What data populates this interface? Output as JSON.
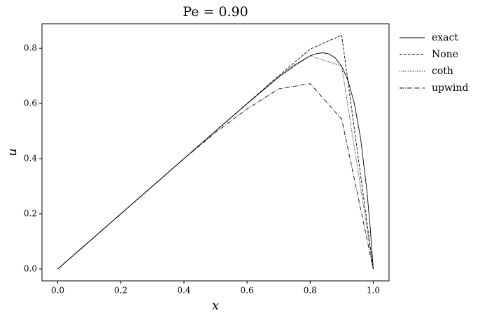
{
  "chart_data": {
    "type": "line",
    "title": "Pe = 0.90",
    "x_label": "x",
    "y_label": "u",
    "xlim": [
      -0.05,
      1.05
    ],
    "ylim": [
      -0.043,
      0.889
    ],
    "xticks": [
      {
        "value": 0,
        "label": "0.0"
      },
      0.2,
      0.4,
      0.6,
      0.8,
      {
        "value": 1,
        "label": "1.0"
      }
    ],
    "yticks": [
      {
        "value": 0,
        "label": "0.0"
      },
      0.2,
      0.4,
      0.6,
      0.8
    ],
    "legend": "outside-upper-right",
    "series": [
      {
        "name": "exact",
        "color": "#000000",
        "dash": "solid",
        "x": [
          0,
          0.5,
          0.6,
          0.7,
          0.75,
          0.8,
          0.82,
          0.84,
          0.86,
          0.88,
          0.9,
          0.92,
          0.94,
          0.96,
          0.98,
          0.99,
          1.0
        ],
        "values": [
          0,
          0.5,
          0.599,
          0.6955,
          0.7389,
          0.7727,
          0.7808,
          0.7839,
          0.7795,
          0.7647,
          0.7347,
          0.6831,
          0.6004,
          0.4732,
          0.2823,
          0.1547,
          0
        ]
      },
      {
        "name": "None",
        "color": "#000000",
        "dash": "dashed",
        "x": [
          0,
          0.1,
          0.2,
          0.3,
          0.4,
          0.5,
          0.6,
          0.7,
          0.8,
          0.9,
          1.0
        ],
        "values": [
          0,
          0.1,
          0.2,
          0.3,
          0.4,
          0.5,
          0.6,
          0.7,
          0.797,
          0.848,
          0
        ]
      },
      {
        "name": "coth",
        "color": "#000000",
        "dash": "dotted",
        "x": [
          0,
          0.1,
          0.2,
          0.3,
          0.4,
          0.5,
          0.6,
          0.7,
          0.8,
          0.9,
          1.0
        ],
        "values": [
          0,
          0.1,
          0.2,
          0.3,
          0.4,
          0.5,
          0.599,
          0.696,
          0.773,
          0.735,
          0
        ]
      },
      {
        "name": "upwind",
        "color": "#000000",
        "dash": "dashdot",
        "x": [
          0,
          0.1,
          0.2,
          0.3,
          0.4,
          0.5,
          0.6,
          0.7,
          0.8,
          0.9,
          1.0
        ],
        "values": [
          0,
          0.1,
          0.2,
          0.3,
          0.4,
          0.495,
          0.58,
          0.653,
          0.672,
          0.543,
          0
        ]
      }
    ]
  }
}
